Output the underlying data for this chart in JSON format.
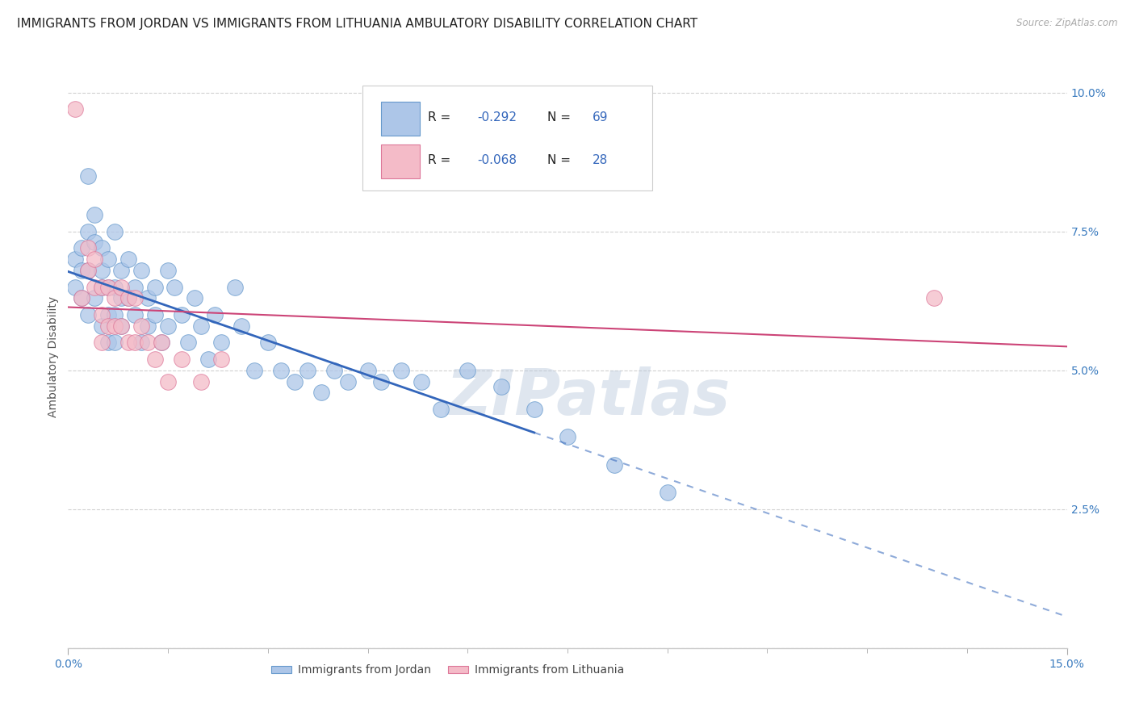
{
  "title": "IMMIGRANTS FROM JORDAN VS IMMIGRANTS FROM LITHUANIA AMBULATORY DISABILITY CORRELATION CHART",
  "source": "Source: ZipAtlas.com",
  "ylabel": "Ambulatory Disability",
  "xlim": [
    0.0,
    0.15
  ],
  "ylim": [
    0.0,
    0.105
  ],
  "xtick_major": [
    0.0,
    0.15
  ],
  "xtick_major_labels": [
    "0.0%",
    "15.0%"
  ],
  "xtick_minor": [
    0.015,
    0.03,
    0.045,
    0.06,
    0.075,
    0.09,
    0.105,
    0.12,
    0.135
  ],
  "yticks": [
    0.0,
    0.025,
    0.05,
    0.075,
    0.1
  ],
  "ytick_labels": [
    "",
    "2.5%",
    "5.0%",
    "7.5%",
    "10.0%"
  ],
  "jordan_R": -0.292,
  "jordan_N": 69,
  "lithuania_R": -0.068,
  "lithuania_N": 28,
  "jordan_color": "#adc6e8",
  "jordan_edge_color": "#6699cc",
  "jordan_line_color": "#3366bb",
  "lithuania_color": "#f4bbc8",
  "lithuania_edge_color": "#dd7799",
  "lithuania_line_color": "#cc4477",
  "jordan_x": [
    0.001,
    0.001,
    0.002,
    0.002,
    0.002,
    0.003,
    0.003,
    0.003,
    0.003,
    0.004,
    0.004,
    0.004,
    0.005,
    0.005,
    0.005,
    0.005,
    0.006,
    0.006,
    0.006,
    0.006,
    0.007,
    0.007,
    0.007,
    0.007,
    0.008,
    0.008,
    0.008,
    0.009,
    0.009,
    0.01,
    0.01,
    0.011,
    0.011,
    0.012,
    0.012,
    0.013,
    0.013,
    0.014,
    0.015,
    0.015,
    0.016,
    0.017,
    0.018,
    0.019,
    0.02,
    0.021,
    0.022,
    0.023,
    0.025,
    0.026,
    0.028,
    0.03,
    0.032,
    0.034,
    0.036,
    0.038,
    0.04,
    0.042,
    0.045,
    0.047,
    0.05,
    0.053,
    0.056,
    0.06,
    0.065,
    0.07,
    0.075,
    0.082,
    0.09
  ],
  "jordan_y": [
    0.065,
    0.07,
    0.063,
    0.072,
    0.068,
    0.075,
    0.085,
    0.068,
    0.06,
    0.073,
    0.063,
    0.078,
    0.068,
    0.072,
    0.065,
    0.058,
    0.07,
    0.065,
    0.06,
    0.055,
    0.075,
    0.065,
    0.06,
    0.055,
    0.068,
    0.063,
    0.058,
    0.07,
    0.063,
    0.065,
    0.06,
    0.068,
    0.055,
    0.063,
    0.058,
    0.065,
    0.06,
    0.055,
    0.068,
    0.058,
    0.065,
    0.06,
    0.055,
    0.063,
    0.058,
    0.052,
    0.06,
    0.055,
    0.065,
    0.058,
    0.05,
    0.055,
    0.05,
    0.048,
    0.05,
    0.046,
    0.05,
    0.048,
    0.05,
    0.048,
    0.05,
    0.048,
    0.043,
    0.05,
    0.047,
    0.043,
    0.038,
    0.033,
    0.028
  ],
  "lithuania_x": [
    0.001,
    0.002,
    0.003,
    0.003,
    0.004,
    0.004,
    0.005,
    0.005,
    0.005,
    0.006,
    0.006,
    0.007,
    0.007,
    0.008,
    0.008,
    0.009,
    0.009,
    0.01,
    0.01,
    0.011,
    0.012,
    0.013,
    0.014,
    0.015,
    0.017,
    0.02,
    0.023,
    0.13
  ],
  "lithuania_y": [
    0.097,
    0.063,
    0.068,
    0.072,
    0.065,
    0.07,
    0.065,
    0.06,
    0.055,
    0.065,
    0.058,
    0.063,
    0.058,
    0.065,
    0.058,
    0.063,
    0.055,
    0.063,
    0.055,
    0.058,
    0.055,
    0.052,
    0.055,
    0.048,
    0.052,
    0.048,
    0.052,
    0.063
  ],
  "background_color": "#ffffff",
  "grid_color": "#cccccc",
  "watermark_text": "ZIPatlas",
  "watermark_color": "#b8c8dc",
  "watermark_alpha": 0.45
}
